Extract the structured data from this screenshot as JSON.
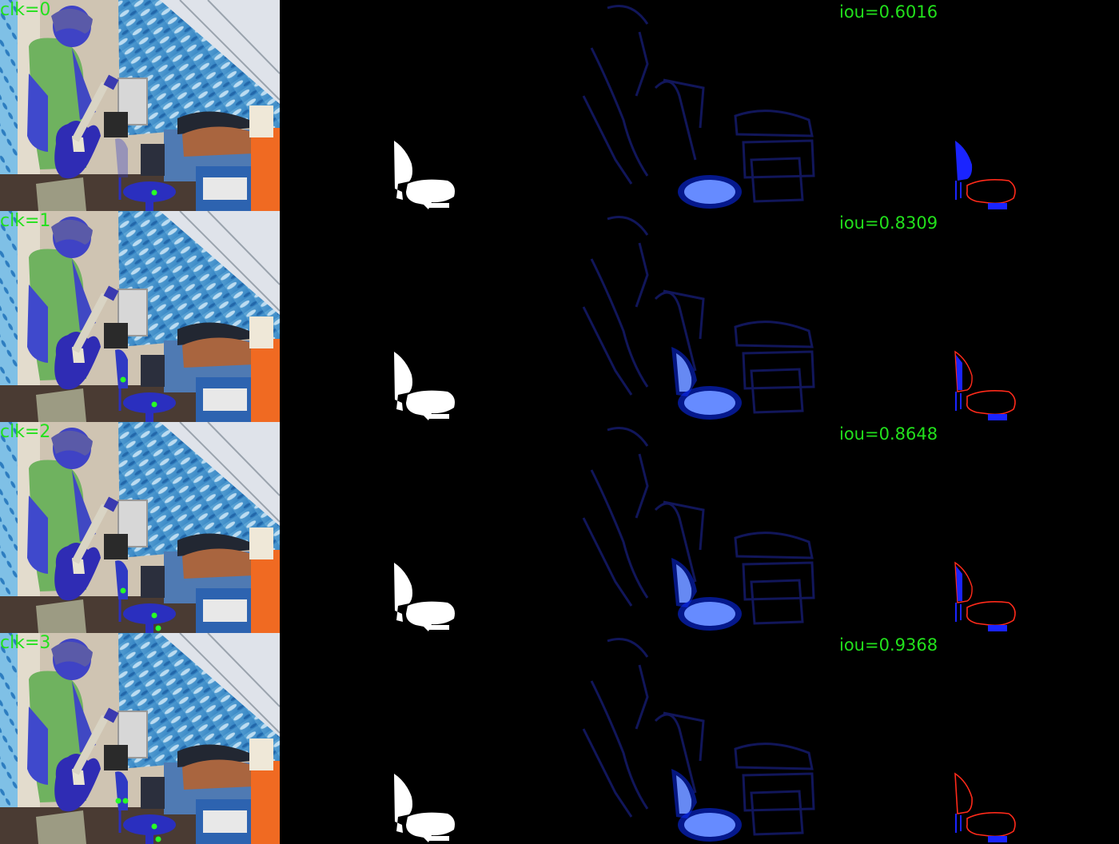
{
  "colors": {
    "label_green": "#22e01c",
    "click_dot": "#27ff27",
    "mask_white": "#ffffff",
    "error_red": "#ff2a1a",
    "error_blue": "#1a24ff",
    "heat_core": "#d8ffff",
    "heat_blue": "#0a2cff",
    "edge_blue": "#151a6a"
  },
  "rows": [
    {
      "click_label": "clk=0",
      "iou_label": "iou=0.6016",
      "clicks": 1
    },
    {
      "click_label": "clk=1",
      "iou_label": "iou=0.8309",
      "clicks": 2
    },
    {
      "click_label": "clk=2",
      "iou_label": "iou=0.8648",
      "clicks": 3
    },
    {
      "click_label": "clk=3",
      "iou_label": "iou=0.9368",
      "clicks": 4
    }
  ]
}
